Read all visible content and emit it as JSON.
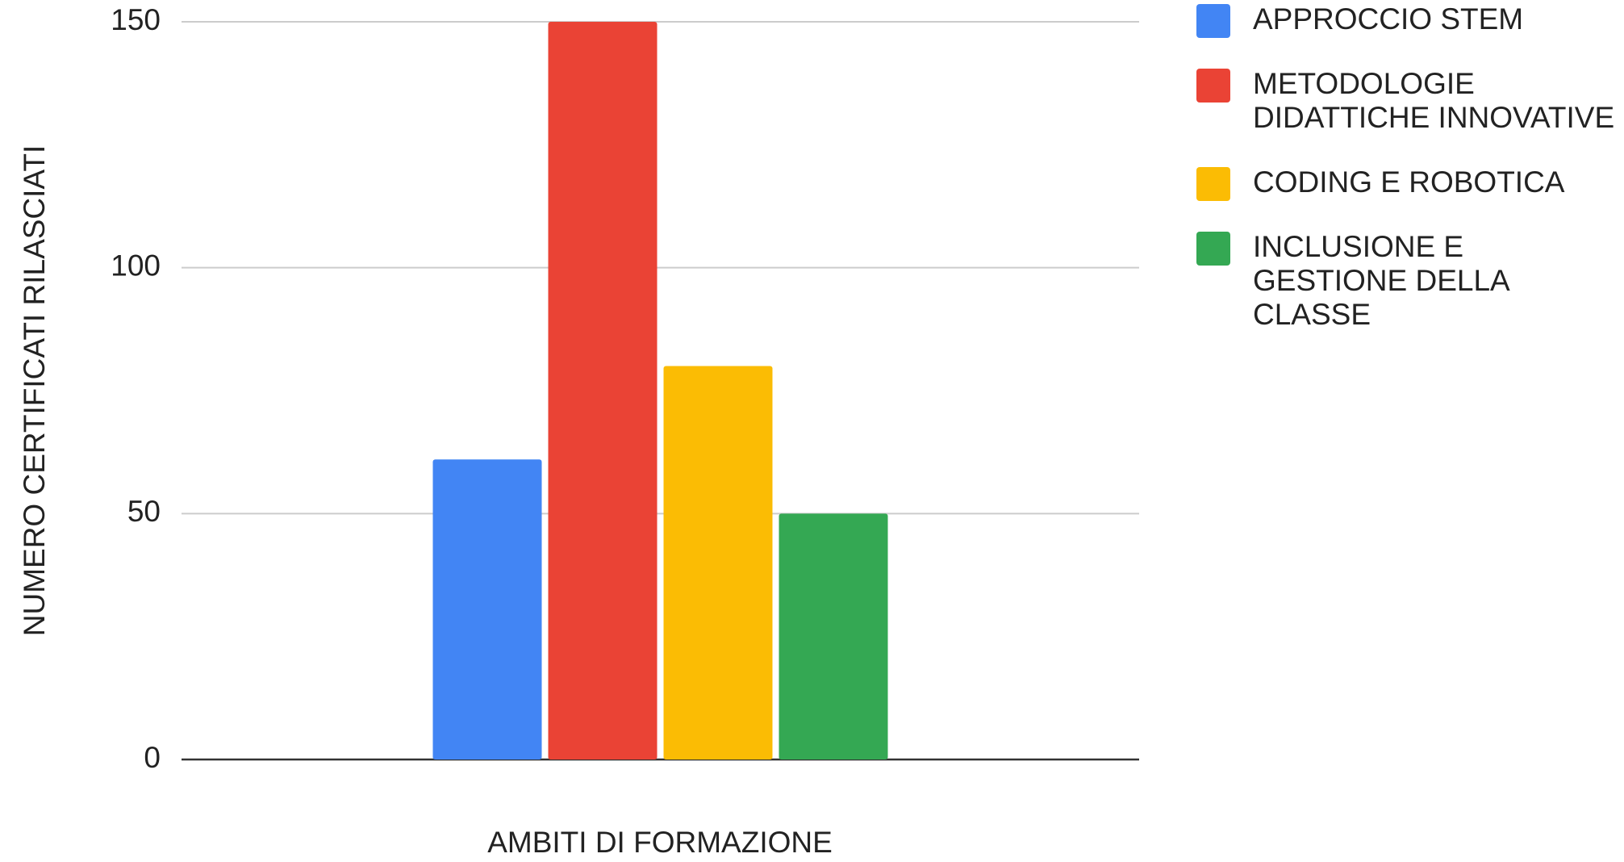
{
  "chart_data": {
    "type": "bar",
    "x_label": "AMBITI DI FORMAZIONE",
    "y_label": "NUMERO CERTIFICATI RILASCIATI",
    "categories": [
      null
    ],
    "series": [
      {
        "name": "APPROCCIO STEM",
        "color": "#4285f4",
        "values": [
          61
        ]
      },
      {
        "name": "METODOLOGIE DIDATTICHE INNOVATIVE",
        "color": "#ea4335",
        "values": [
          150
        ]
      },
      {
        "name": "CODING E ROBOTICA",
        "color": "#fbbc04",
        "values": [
          80
        ]
      },
      {
        "name": "INCLUSIONE E GESTIONE DELLA CLASSE",
        "color": "#34a853",
        "values": [
          50
        ]
      }
    ],
    "ylim": [
      0,
      150
    ],
    "yticks": [
      0,
      50,
      100,
      150
    ],
    "grid": true,
    "legend": "right"
  }
}
